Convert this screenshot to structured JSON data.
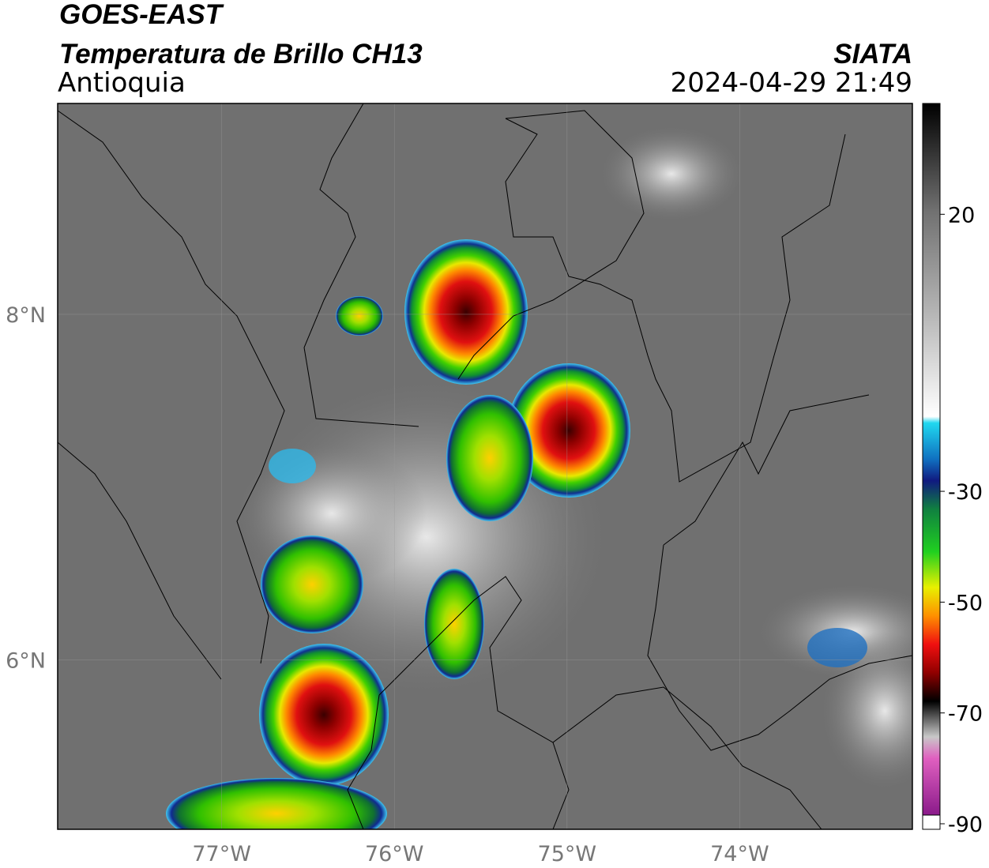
{
  "header": {
    "title": "GOES-EAST",
    "subtitle": "Temperatura de Brillo CH13",
    "region": "Antioquia",
    "source": "SIATA",
    "datetime": "2024-04-29 21:49"
  },
  "map": {
    "xlim": [
      -77.95,
      -73
    ],
    "ylim": [
      5.02,
      9.22
    ],
    "grid": true,
    "xticks": [
      {
        "value": -77,
        "label": "77°W"
      },
      {
        "value": -76,
        "label": "76°W"
      },
      {
        "value": -75,
        "label": "75°W"
      },
      {
        "value": -74,
        "label": "74°W"
      }
    ],
    "yticks": [
      {
        "value": 8,
        "label": "8°N"
      },
      {
        "value": 6,
        "label": "6°N"
      }
    ]
  },
  "colorbar": {
    "lim": [
      -91,
      40
    ],
    "ticks": [
      20,
      -30,
      -50,
      -70,
      -90
    ]
  }
}
